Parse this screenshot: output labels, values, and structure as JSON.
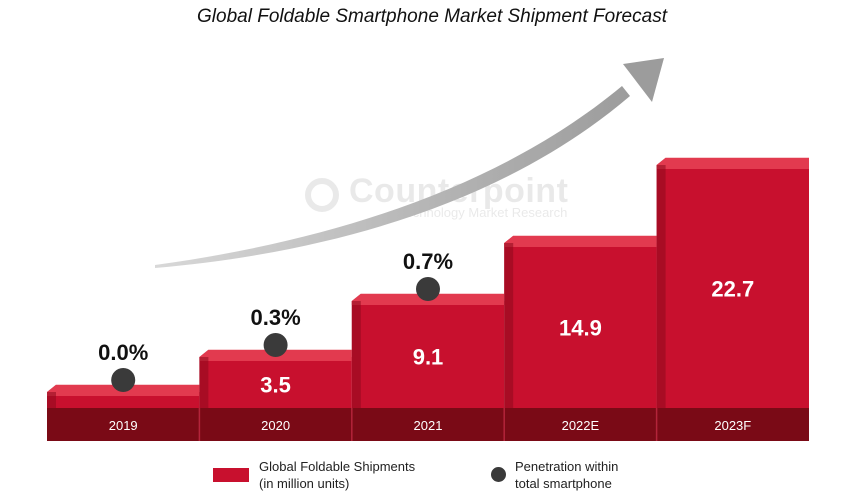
{
  "title": "Global Foldable Smartphone Market Shipment Forecast",
  "watermark": {
    "brand": "Counterpoint",
    "tagline": "Technology Market Research"
  },
  "colors": {
    "bar_front": "#c8102e",
    "bar_top": "#e23a4f",
    "bar_side": "#8e0a1d",
    "base_band": "#7a0a16",
    "base_divider": "#b3243a",
    "dot": "#3a3a3a",
    "arrow": "#a9a9a9"
  },
  "legend": {
    "shipments_line1": "Global Foldable Shipments",
    "shipments_line2": "(in million units)",
    "penetration_line1": "Penetration within",
    "penetration_line2": "total smartphone"
  },
  "chart_data": {
    "type": "bar",
    "categories": [
      "2019",
      "2020",
      "2021",
      "2022E",
      "2023F"
    ],
    "series": [
      {
        "name": "Global Foldable Shipments (in million units)",
        "values": [
          null,
          3.5,
          9.1,
          14.9,
          22.7
        ],
        "labels": [
          "",
          "3.5",
          "9.1",
          "14.9",
          "22.7"
        ]
      },
      {
        "name": "Penetration within total smartphone",
        "values": [
          0.0,
          0.3,
          0.7,
          null,
          null
        ],
        "labels": [
          "0.0%",
          "0.3%",
          "0.7%",
          "",
          ""
        ]
      }
    ],
    "title": "Global Foldable Smartphone Market Shipment Forecast",
    "xlabel": "",
    "ylabel": "",
    "ylim": [
      0,
      22.7
    ],
    "grid": false,
    "legend_position": "bottom"
  }
}
